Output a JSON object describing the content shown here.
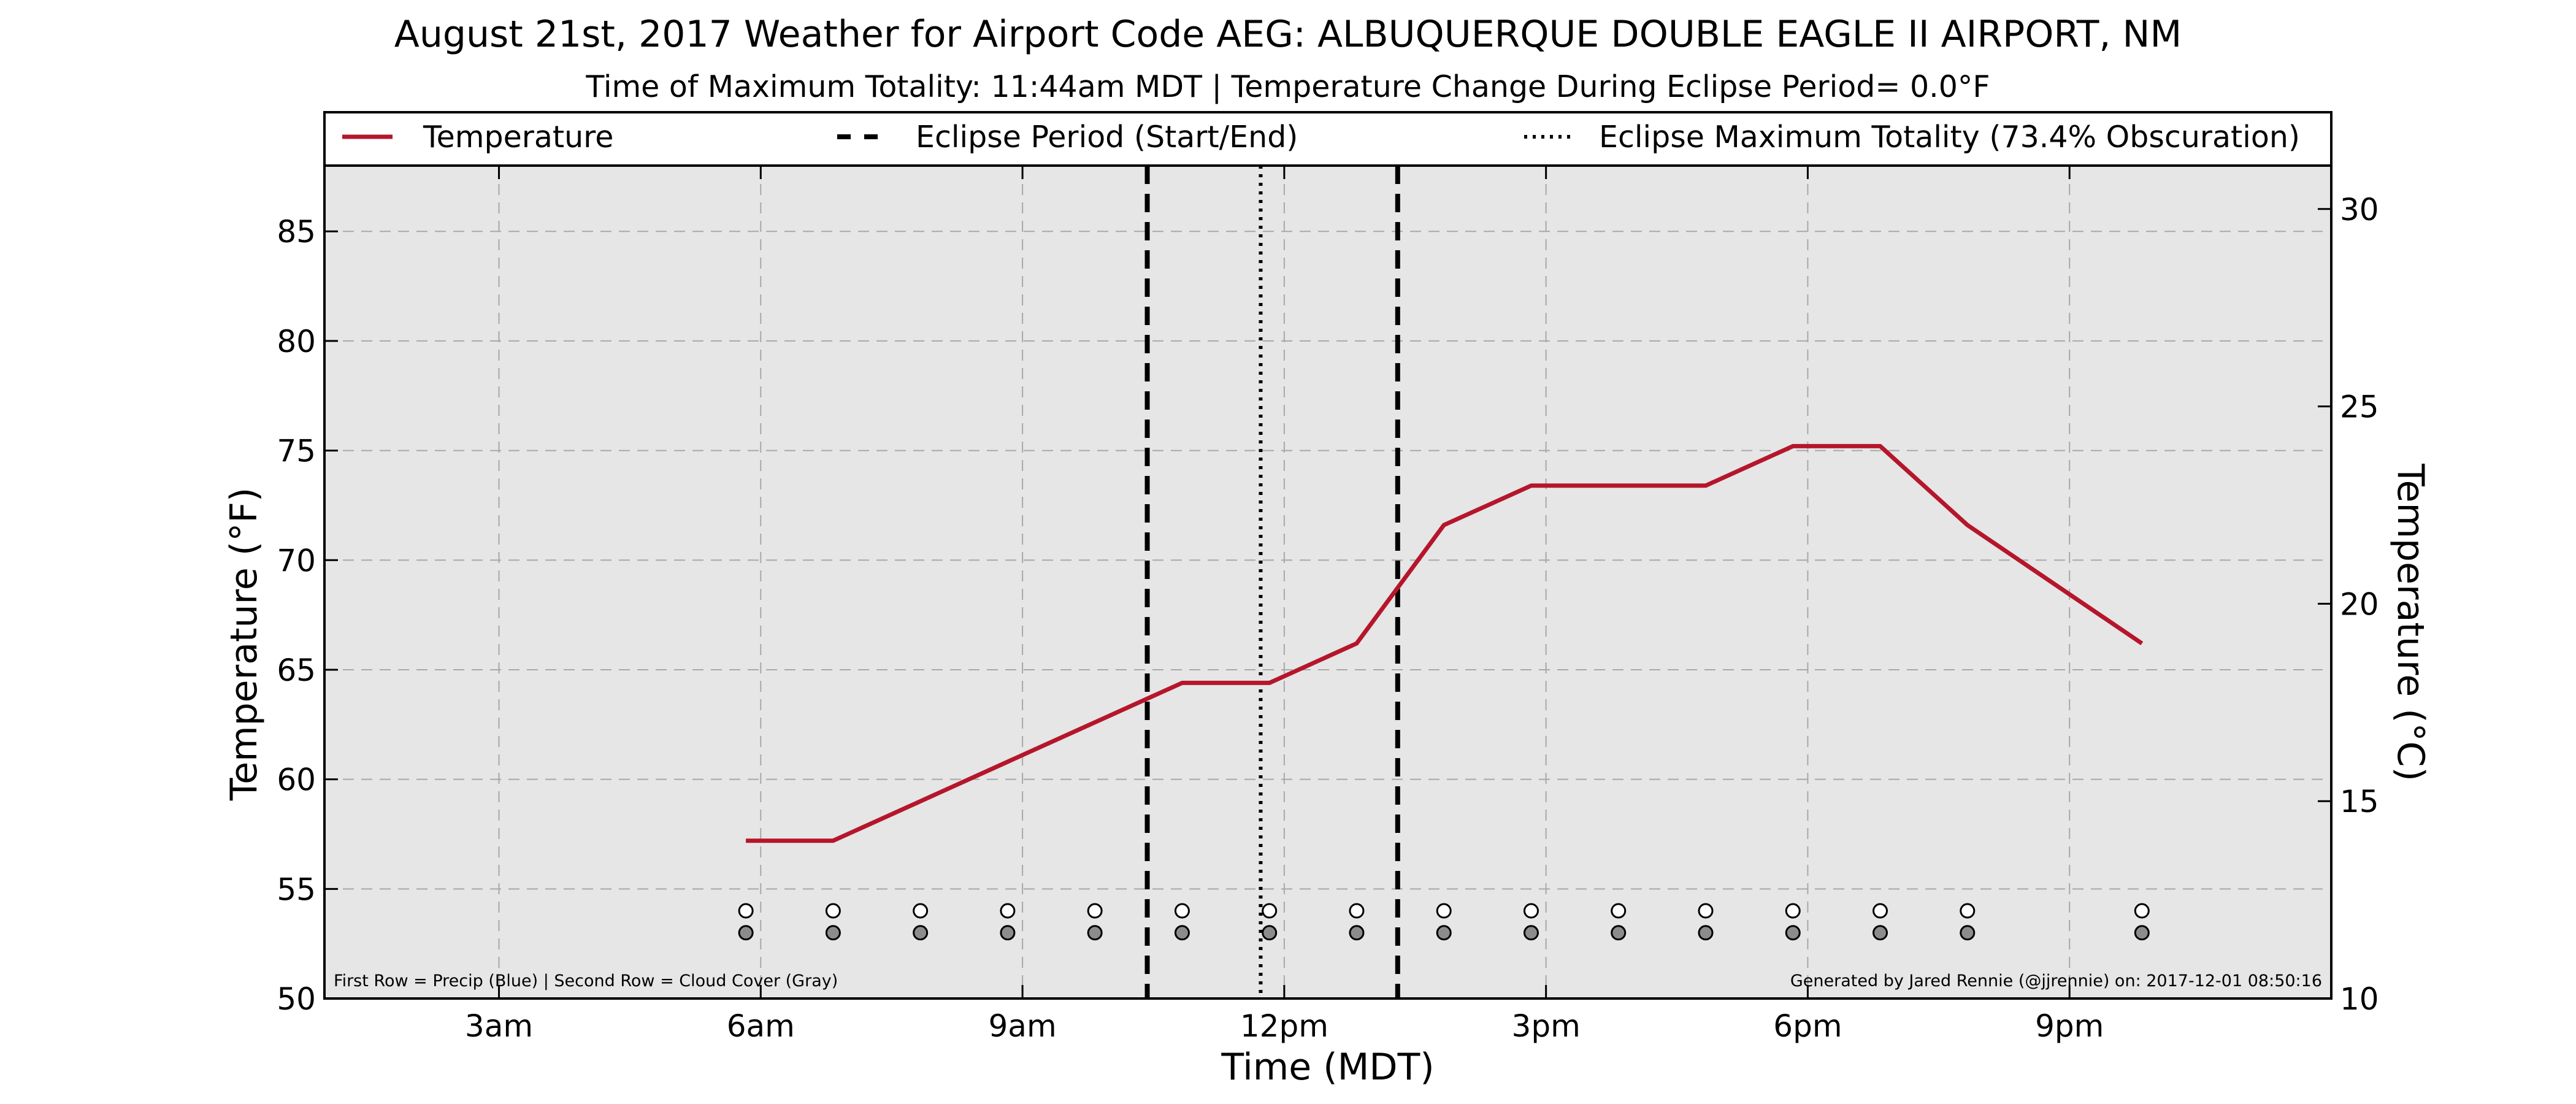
{
  "chart_data": {
    "type": "line",
    "title": "August 21st, 2017 Weather for Airport Code AEG: ALBUQUERQUE DOUBLE EAGLE II AIRPORT, NM",
    "subtitle": "Time of Maximum Totality: 11:44am MDT | Temperature Change During Eclipse Period= 0.0°F",
    "xlabel": "Time (MDT)",
    "ylabel": "Temperature (°F)",
    "y2label": "Temperature (°C)",
    "xlim": [
      1.0,
      24.0
    ],
    "ylim": [
      50,
      88
    ],
    "y2lim": [
      10,
      31.1
    ],
    "x_ticks": [
      3,
      6,
      9,
      12,
      15,
      18,
      21
    ],
    "x_tick_labels": [
      "3am",
      "6am",
      "9am",
      "12pm",
      "3pm",
      "6pm",
      "9pm"
    ],
    "y_ticks": [
      50,
      55,
      60,
      65,
      70,
      75,
      80,
      85
    ],
    "y2_ticks": [
      10,
      15,
      20,
      25,
      30
    ],
    "grid": true,
    "legend_position": "top",
    "legend": [
      {
        "label": "Temperature",
        "style": "solid",
        "color": "#b5162b"
      },
      {
        "label": "Eclipse Period (Start/End)",
        "style": "dashed",
        "color": "#000000"
      },
      {
        "label": "Eclipse Maximum Totality (73.4% Obscuration)",
        "style": "dotted",
        "color": "#000000"
      }
    ],
    "series": [
      {
        "name": "Temperature",
        "color": "#b5162b",
        "points": [
          [
            5.83,
            57.2
          ],
          [
            6.83,
            57.2
          ],
          [
            7.83,
            59.0
          ],
          [
            8.83,
            60.8
          ],
          [
            9.83,
            62.6
          ],
          [
            10.83,
            64.4
          ],
          [
            11.83,
            64.4
          ],
          [
            12.83,
            66.2
          ],
          [
            13.83,
            71.6
          ],
          [
            14.83,
            73.4
          ],
          [
            15.83,
            73.4
          ],
          [
            16.83,
            73.4
          ],
          [
            17.83,
            75.2
          ],
          [
            18.83,
            75.2
          ],
          [
            19.83,
            71.6
          ],
          [
            21.83,
            66.2
          ]
        ]
      }
    ],
    "eclipse_start": 10.43,
    "eclipse_end": 13.3,
    "eclipse_max": 11.73,
    "marker_times": [
      5.83,
      6.83,
      7.83,
      8.83,
      9.83,
      10.83,
      11.83,
      12.83,
      13.83,
      14.83,
      15.83,
      16.83,
      17.83,
      18.83,
      19.83,
      21.83
    ],
    "precip_row_value": 54,
    "cloud_row_value": 53,
    "precip_color": "#ffffff",
    "cloud_color": "#8c8c8c",
    "plot_background": "#e6e6e6",
    "footnote_left": "First Row = Precip (Blue) | Second Row = Cloud Cover (Gray)",
    "footnote_right": "Generated by Jared Rennie (@jjrennie) on: 2017-12-01 08:50:16"
  }
}
